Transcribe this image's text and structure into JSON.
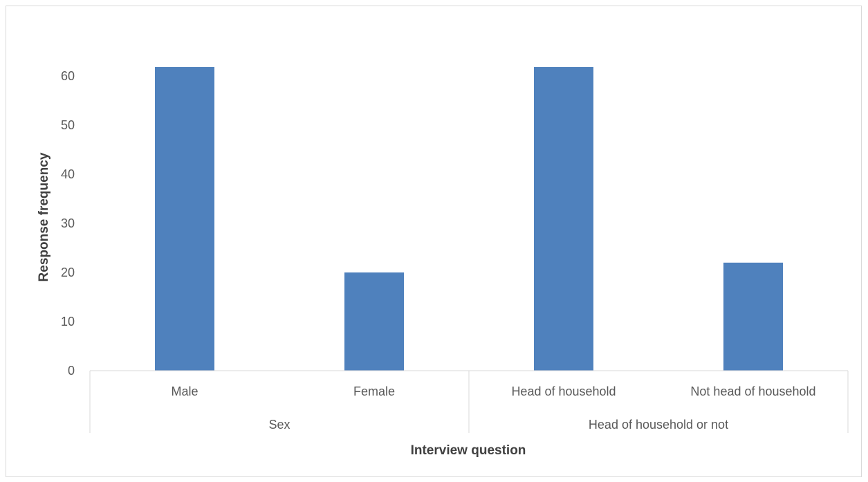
{
  "chart_data": {
    "type": "bar",
    "categories": [
      "Male",
      "Female",
      "Head of household",
      "Not head of household"
    ],
    "groups": [
      {
        "label": "Sex",
        "categories": [
          "Male",
          "Female"
        ]
      },
      {
        "label": "Head of household or not",
        "categories": [
          "Head of household",
          "Not head of household"
        ]
      }
    ],
    "values": [
      62,
      20,
      62,
      22
    ],
    "xlabel": "Interview question",
    "ylabel": "Response frequency",
    "ylim": [
      0,
      60
    ],
    "yticks": [
      "0",
      "10",
      "20",
      "30",
      "40",
      "50",
      "60"
    ],
    "grid": false,
    "legend": "none",
    "colors": {
      "bar": "#4f81bd",
      "axis": "#d9d9d9",
      "text": "#595959"
    }
  }
}
